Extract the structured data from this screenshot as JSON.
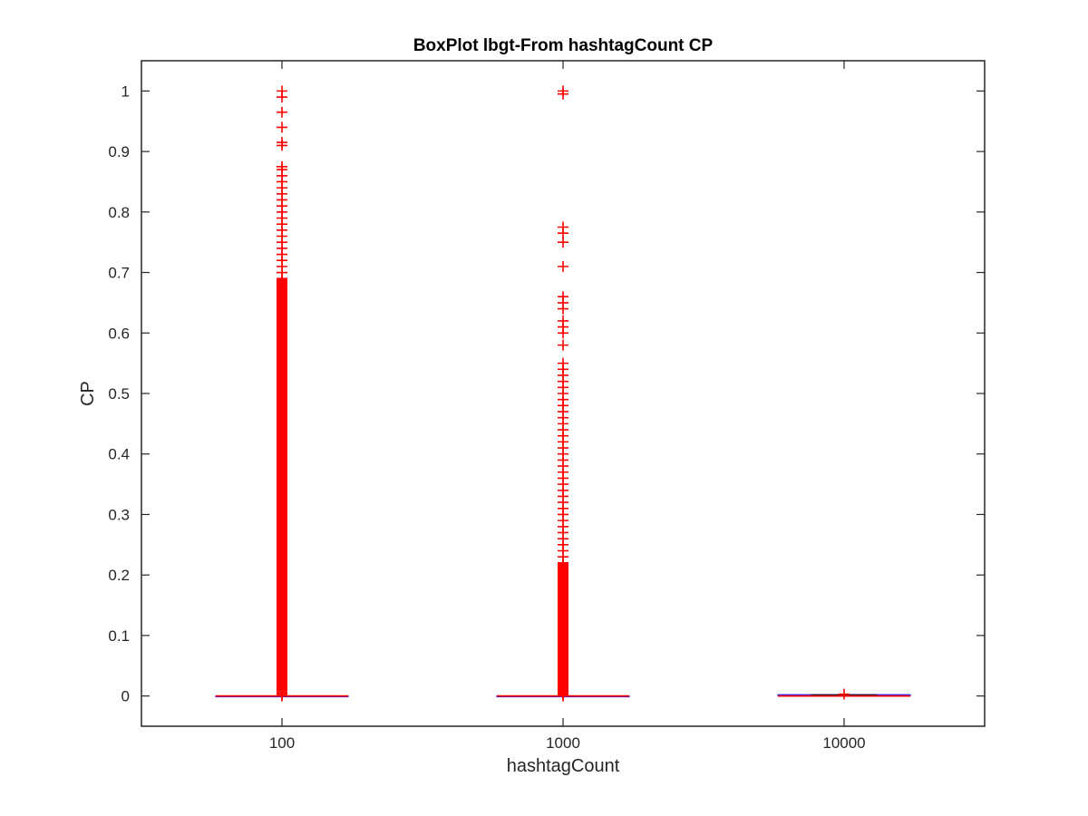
{
  "chart_data": {
    "type": "boxplot",
    "title": "BoxPlot lbgt-From hashtagCount CP",
    "xlabel": "hashtagCount",
    "ylabel": "CP",
    "categories": [
      "100",
      "1000",
      "10000"
    ],
    "ylim": [
      -0.05,
      1.05
    ],
    "yticks": [
      0,
      0.1,
      0.2,
      0.3,
      0.4,
      0.5,
      0.6,
      0.7,
      0.8,
      0.9,
      1
    ],
    "ytick_labels": [
      "0",
      "0.1",
      "0.2",
      "0.3",
      "0.4",
      "0.5",
      "0.6",
      "0.7",
      "0.8",
      "0.9",
      "1"
    ],
    "grid": false,
    "boxes": [
      {
        "category": "100",
        "q1": 0,
        "median": 0,
        "q3": 0,
        "whisker_low": 0,
        "whisker_high": 0,
        "outliers_dense_range": [
          0.0,
          0.69
        ],
        "outliers_sparse": [
          0.7,
          0.71,
          0.72,
          0.73,
          0.74,
          0.75,
          0.76,
          0.77,
          0.78,
          0.79,
          0.8,
          0.81,
          0.82,
          0.83,
          0.84,
          0.85,
          0.86,
          0.87,
          0.875,
          0.91,
          0.915,
          0.94,
          0.965,
          0.99,
          1.0
        ]
      },
      {
        "category": "1000",
        "q1": 0,
        "median": 0,
        "q3": 0,
        "whisker_low": 0,
        "whisker_high": 0,
        "outliers_dense_range": [
          0.0,
          0.22
        ],
        "outliers_sparse": [
          0.23,
          0.24,
          0.25,
          0.26,
          0.27,
          0.28,
          0.29,
          0.3,
          0.31,
          0.32,
          0.33,
          0.34,
          0.35,
          0.36,
          0.37,
          0.38,
          0.39,
          0.4,
          0.41,
          0.42,
          0.43,
          0.44,
          0.45,
          0.46,
          0.47,
          0.48,
          0.49,
          0.5,
          0.51,
          0.52,
          0.53,
          0.54,
          0.55,
          0.58,
          0.6,
          0.61,
          0.62,
          0.64,
          0.65,
          0.66,
          0.71,
          0.75,
          0.765,
          0.775,
          0.995,
          1.0
        ]
      },
      {
        "category": "10000",
        "q1": 0,
        "median": 0,
        "q3": 0.002,
        "whisker_low": 0,
        "whisker_high": 0.002,
        "outliers_dense_range": [
          0,
          0
        ],
        "outliers_sparse": [
          0.003
        ]
      }
    ],
    "colors": {
      "box": "#1a1aff",
      "median": "#ff0000",
      "outlier": "#ff0000",
      "axes": "#262626"
    }
  }
}
